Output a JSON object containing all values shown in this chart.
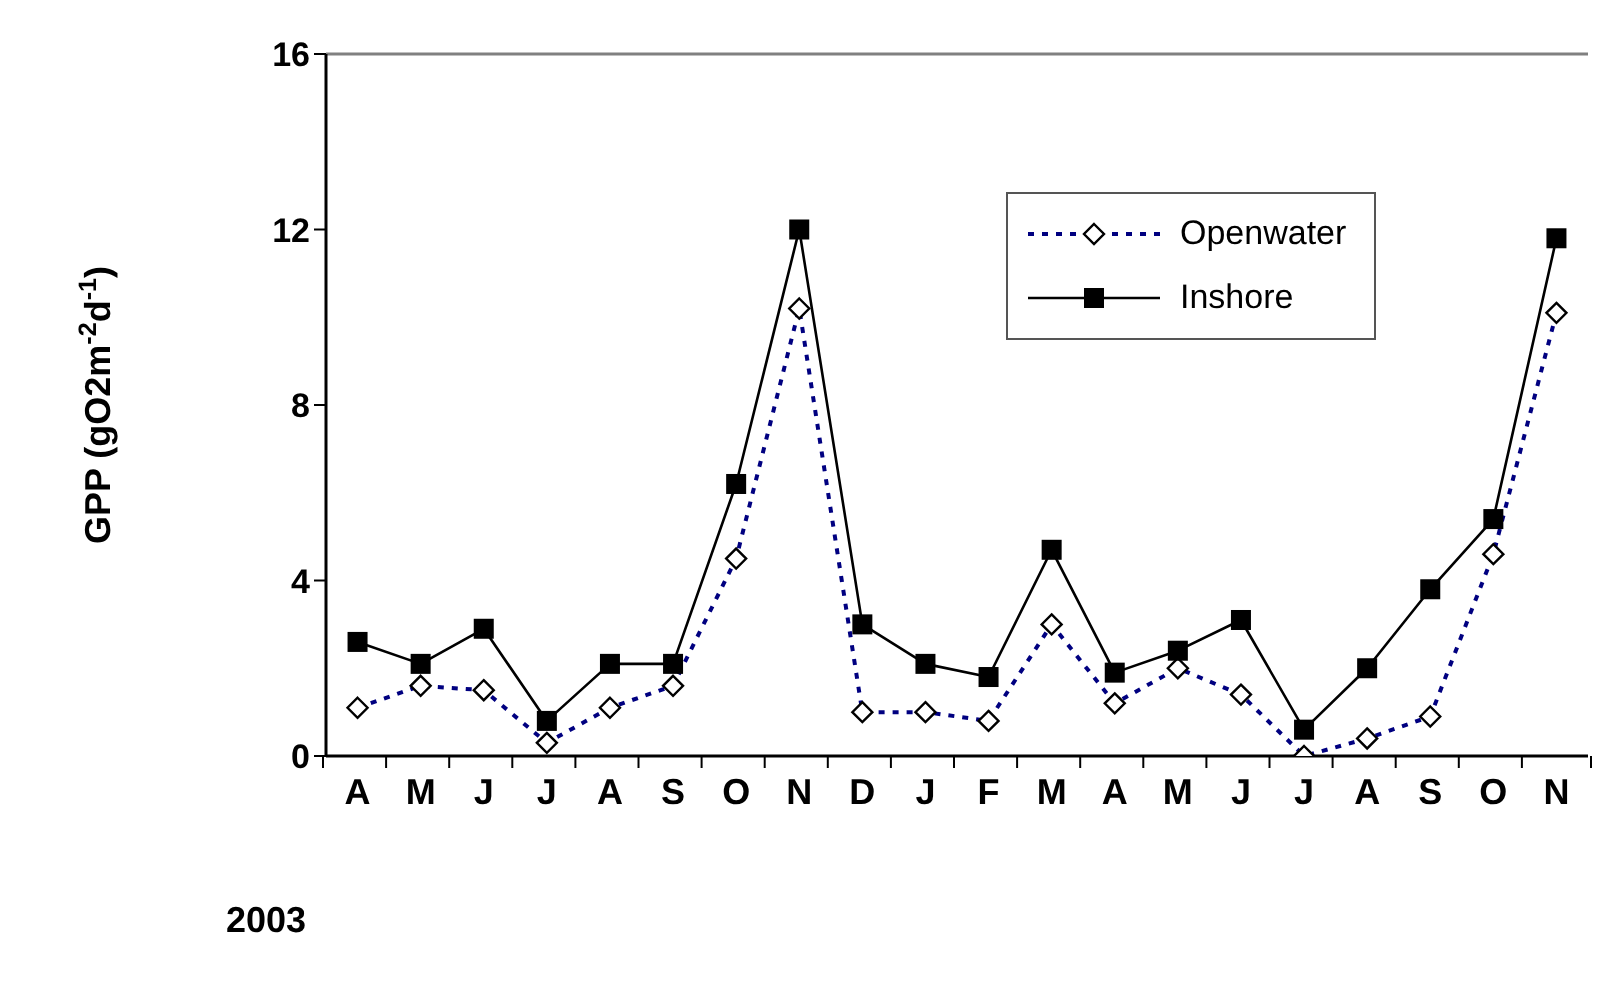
{
  "chart_data": {
    "type": "line",
    "categories": [
      "A",
      "M",
      "J",
      "J",
      "A",
      "S",
      "O",
      "N",
      "D",
      "J",
      "F",
      "M",
      "A",
      "M",
      "J",
      "J",
      "A",
      "S",
      "O",
      "N"
    ],
    "ylabel": "GPP (gO2m$^{-2}$d$^{-1}$)",
    "ylim": [
      0,
      16
    ],
    "yticks": [
      0,
      4,
      8,
      12,
      16
    ],
    "annotations": [
      "2003"
    ],
    "grid": false,
    "legend": "top right",
    "series": [
      {
        "name": "Openwater",
        "color": "#000080",
        "marker": "diamond",
        "line_style": "dotted",
        "values": [
          1.1,
          1.6,
          1.5,
          0.3,
          1.1,
          1.6,
          4.5,
          10.2,
          1.0,
          1.0,
          0.8,
          3.0,
          1.2,
          2.0,
          1.4,
          0.0,
          0.4,
          0.9,
          4.6,
          10.1
        ]
      },
      {
        "name": "Inshore",
        "color": "#000000",
        "marker": "square",
        "line_style": "solid",
        "values": [
          2.6,
          2.1,
          2.9,
          0.8,
          2.1,
          2.1,
          6.2,
          12.0,
          3.0,
          2.1,
          1.8,
          4.7,
          1.9,
          2.4,
          3.1,
          0.6,
          2.0,
          3.8,
          5.4,
          11.8
        ]
      }
    ]
  }
}
